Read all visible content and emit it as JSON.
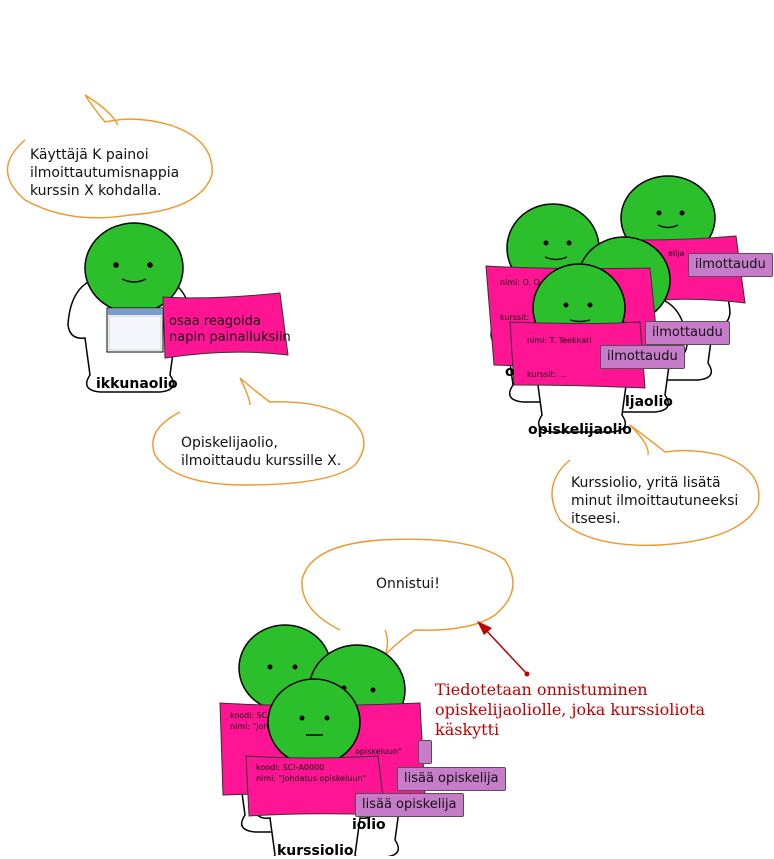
{
  "bubbles": {
    "user_action": [
      "Käyttäjä K painoi",
      "ilmoittautumisnappia",
      "kurssin X kohdalla."
    ],
    "to_student": [
      "Opiskelijaolio,",
      "ilmoittaudu kurssille X."
    ],
    "to_course": [
      "Kurssiolio, yritä lisätä",
      "minut ilmoittautuneeksi",
      "itseesi."
    ],
    "success": "Onnistui!"
  },
  "window_object": {
    "label": "ikkunaolio",
    "sign": [
      "osaa reagoida",
      "napin painalluksiin"
    ]
  },
  "student_objects": {
    "label": "opiskelijaolio",
    "label_partial": "ljaolio",
    "label_partial2": "o",
    "name_partial": "nimi: O. O",
    "name_front": "nimi: T. Teekkari",
    "name_back": "elija",
    "courses_label": "kurssit:",
    "courses_front": "kurssit: ...",
    "button_label": "ilmottaudu"
  },
  "course_objects": {
    "label": "kurssiolio",
    "label_partial": "iolio",
    "code_partial": "koodi:  SC",
    "name_partial": "nimi: \"Joh",
    "code_front": "koodi:  SCI-A0000",
    "name_front": "nimi: \"Johdatus opiskeluun\"",
    "name_mid": "opiskeluun\"",
    "button_label": "lisää opiskelija"
  },
  "annotation": [
    "Tiedotetaan onnistuminen",
    "opiskelijaoliolle, joka kurssioliota käskytti"
  ],
  "colors": {
    "head": "#2cbf2c",
    "sign": "#ff1493",
    "button": "#c77cc9",
    "bubble_outline": "#f0962a",
    "annotation": "#c00000"
  }
}
